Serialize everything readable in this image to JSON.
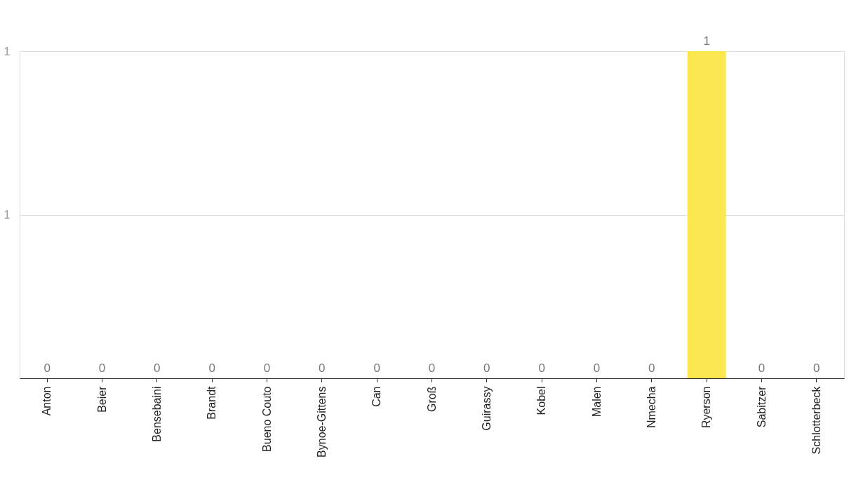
{
  "chart_data": {
    "type": "bar",
    "categories": [
      "Anton",
      "Beier",
      "Bensebaini",
      "Brandt",
      "Bueno Couto",
      "Bynoe-Gittens",
      "Can",
      "Groß",
      "Guirassy",
      "Kobel",
      "Malen",
      "Nmecha",
      "Ryerson",
      "Sabitzer",
      "Schlotterbeck"
    ],
    "values": [
      0,
      0,
      0,
      0,
      0,
      0,
      0,
      0,
      0,
      0,
      0,
      0,
      1,
      0,
      0
    ],
    "color": "#fbe74f",
    "ylim": [
      0,
      1
    ],
    "yticks": [
      {
        "value": 0.5,
        "label": "1"
      },
      1
    ],
    "grid": "y",
    "data_labels": true
  }
}
